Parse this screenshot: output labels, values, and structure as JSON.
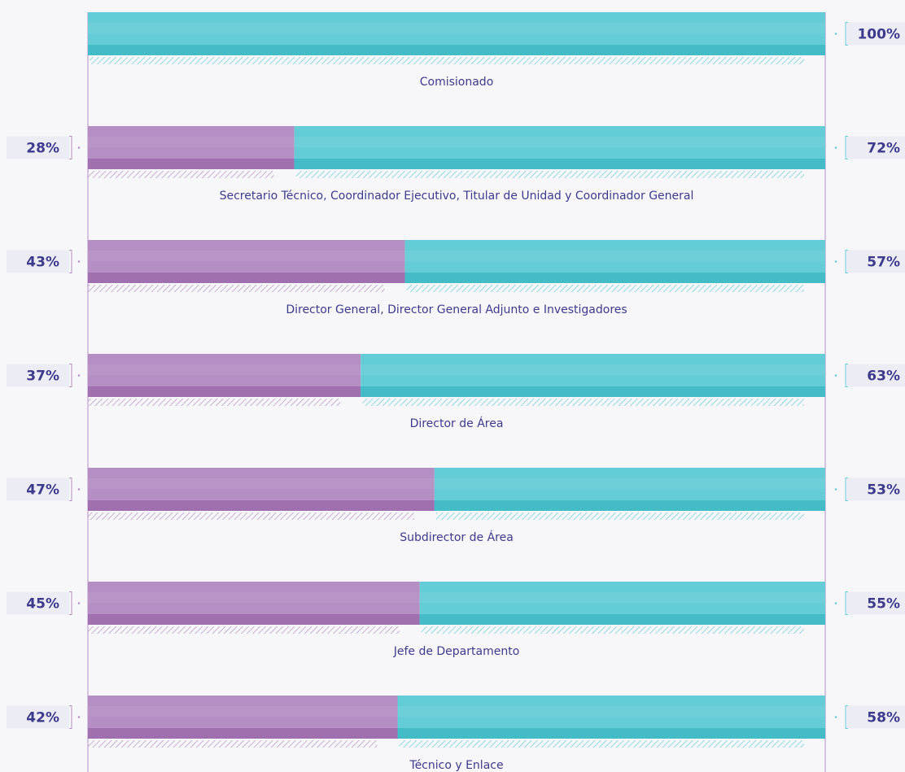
{
  "chart_data": {
    "type": "stacked-bar-horizontal",
    "categories": [
      "Comisionado",
      "Secretario Técnico, Coordinador Ejecutivo, Titular de Unidad y Coordinador General",
      "Director General, Director General Adjunto e Investigadores",
      "Director de Área",
      "Subdirector de Área",
      "Jefe de Departamento",
      "Técnico y Enlace"
    ],
    "series": [
      {
        "color": "#b58fc4",
        "values": [
          0,
          28,
          43,
          37,
          47,
          45,
          42
        ],
        "value_labels": [
          null,
          "28%",
          "43%",
          "37%",
          "47%",
          "45%",
          "42%"
        ]
      },
      {
        "color": "#64ccd6",
        "values": [
          100,
          72,
          57,
          63,
          53,
          55,
          58
        ],
        "value_labels": [
          "100%",
          "72%",
          "57%",
          "63%",
          "53%",
          "55%",
          "58%"
        ]
      }
    ],
    "xlim": [
      0,
      100
    ]
  }
}
